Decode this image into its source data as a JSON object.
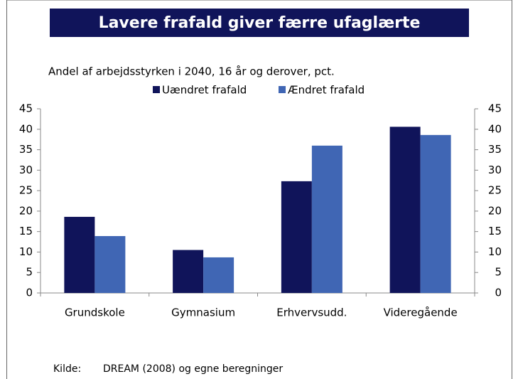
{
  "chart_data": {
    "type": "bar",
    "title": "Lavere frafald giver færre ufaglærte",
    "subtitle": "Andel af arbejdsstyrken i 2040, 16 år og derover, pct.",
    "categories": [
      "Grundskole",
      "Gymnasium",
      "Erhvervsudd.",
      "Videregående"
    ],
    "series": [
      {
        "name": "Uændret frafald",
        "color": "#10145a",
        "values": [
          18.6,
          10.5,
          27.3,
          40.6
        ]
      },
      {
        "name": "Ændret frafald",
        "color": "#4066b4",
        "values": [
          13.9,
          8.7,
          36.0,
          38.6
        ]
      }
    ],
    "ylim": [
      0,
      45
    ],
    "yticks": [
      0,
      5,
      10,
      15,
      20,
      25,
      30,
      35,
      40,
      45
    ],
    "y2lim": [
      0,
      45
    ],
    "y2ticks": [
      0,
      5,
      10,
      15,
      20,
      25,
      30,
      35,
      40,
      45
    ],
    "grid": false,
    "source_label": "Kilde:",
    "source": "DREAM (2008) og egne beregninger"
  }
}
